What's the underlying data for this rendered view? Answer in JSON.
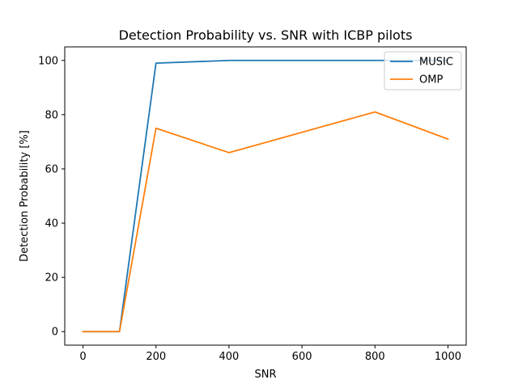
{
  "chart_data": {
    "type": "line",
    "title": "Detection Probability vs. SNR with ICBP pilots",
    "xlabel": "SNR",
    "ylabel": "Detection Probability [%]",
    "xlim": [
      -50,
      1050
    ],
    "ylim": [
      -5,
      105
    ],
    "xticks": [
      0,
      200,
      400,
      600,
      800,
      1000
    ],
    "yticks": [
      0,
      20,
      40,
      60,
      80,
      100
    ],
    "grid": false,
    "legend_position": "top-right",
    "x": [
      0,
      100,
      200,
      400,
      800,
      1000
    ],
    "series": [
      {
        "name": "MUSIC",
        "color": "#1f77b4",
        "values": [
          0,
          0,
          99,
          100,
          100,
          100
        ]
      },
      {
        "name": "OMP",
        "color": "#ff7f0e",
        "values": [
          0,
          0,
          75,
          66,
          81,
          71
        ]
      }
    ]
  }
}
